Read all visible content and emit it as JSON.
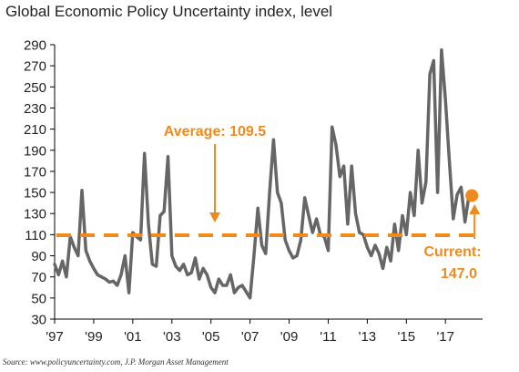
{
  "chart_data": {
    "type": "line",
    "title": "Global Economic Policy Uncertainty index, level",
    "xlabel": "",
    "ylabel": "",
    "ylim": [
      30,
      290
    ],
    "xlim": [
      1997.0,
      2018.9
    ],
    "y_ticks": [
      30,
      50,
      70,
      90,
      110,
      130,
      150,
      170,
      190,
      210,
      230,
      250,
      270,
      290
    ],
    "x_tick_labels": [
      {
        "x": 1997,
        "label": "'97"
      },
      {
        "x": 1999,
        "label": "'99"
      },
      {
        "x": 2001,
        "label": "'01"
      },
      {
        "x": 2003,
        "label": "'03"
      },
      {
        "x": 2005,
        "label": "'05"
      },
      {
        "x": 2007,
        "label": "'07"
      },
      {
        "x": 2009,
        "label": "'09"
      },
      {
        "x": 2011,
        "label": "'11"
      },
      {
        "x": 2013,
        "label": "'13"
      },
      {
        "x": 2015,
        "label": "'15"
      },
      {
        "x": 2017,
        "label": "'17"
      }
    ],
    "grid": false,
    "series": [
      {
        "color": "#666666",
        "x": [
          1997.0,
          1997.2,
          1997.4,
          1997.6,
          1997.8,
          1998.0,
          1998.2,
          1998.4,
          1998.6,
          1998.8,
          1999.0,
          1999.2,
          1999.4,
          1999.6,
          1999.8,
          2000.0,
          2000.2,
          2000.4,
          2000.6,
          2000.8,
          2001.0,
          2001.2,
          2001.4,
          2001.6,
          2001.8,
          2002.0,
          2002.2,
          2002.4,
          2002.6,
          2002.8,
          2003.0,
          2003.2,
          2003.4,
          2003.6,
          2003.8,
          2004.0,
          2004.2,
          2004.4,
          2004.6,
          2004.8,
          2005.0,
          2005.2,
          2005.4,
          2005.6,
          2005.8,
          2006.0,
          2006.2,
          2006.4,
          2006.6,
          2006.8,
          2007.0,
          2007.2,
          2007.4,
          2007.6,
          2007.8,
          2008.0,
          2008.2,
          2008.4,
          2008.6,
          2008.8,
          2009.0,
          2009.2,
          2009.4,
          2009.6,
          2009.8,
          2010.0,
          2010.2,
          2010.4,
          2010.6,
          2010.8,
          2011.0,
          2011.2,
          2011.4,
          2011.6,
          2011.8,
          2012.0,
          2012.2,
          2012.4,
          2012.6,
          2012.8,
          2013.0,
          2013.2,
          2013.4,
          2013.6,
          2013.8,
          2014.0,
          2014.2,
          2014.4,
          2014.6,
          2014.8,
          2015.0,
          2015.2,
          2015.4,
          2015.6,
          2015.8,
          2016.0,
          2016.2,
          2016.4,
          2016.6,
          2016.8,
          2017.0,
          2017.2,
          2017.4,
          2017.6,
          2017.8,
          2018.0,
          2018.2
        ],
        "values": [
          82,
          72,
          85,
          70,
          108,
          98,
          90,
          152,
          95,
          85,
          78,
          72,
          70,
          68,
          65,
          66,
          62,
          72,
          90,
          55,
          112,
          108,
          105,
          187,
          120,
          82,
          80,
          128,
          132,
          184,
          90,
          80,
          76,
          82,
          72,
          74,
          88,
          68,
          78,
          72,
          60,
          55,
          68,
          62,
          62,
          72,
          55,
          60,
          62,
          56,
          50,
          90,
          135,
          100,
          92,
          150,
          200,
          150,
          140,
          105,
          95,
          88,
          90,
          105,
          145,
          128,
          112,
          125,
          110,
          108,
          95,
          212,
          195,
          165,
          175,
          120,
          175,
          130,
          112,
          110,
          98,
          90,
          100,
          92,
          78,
          98,
          85,
          120,
          95,
          128,
          110,
          150,
          128,
          190,
          140,
          160,
          262,
          275,
          150,
          285,
          238,
          180,
          125,
          148,
          155,
          122,
          147
        ],
        "current": {
          "x": 2018.35,
          "y": 147.0
        }
      }
    ],
    "reference_line": {
      "value": 109.5,
      "color": "#F08A1C"
    },
    "annotations": {
      "average_label": "Average: 109.5",
      "current_label_line1": "Current:",
      "current_label_line2": "147.0"
    },
    "source": "Source: www.policyuncertainty.com, J.P. Morgan Asset Management"
  }
}
